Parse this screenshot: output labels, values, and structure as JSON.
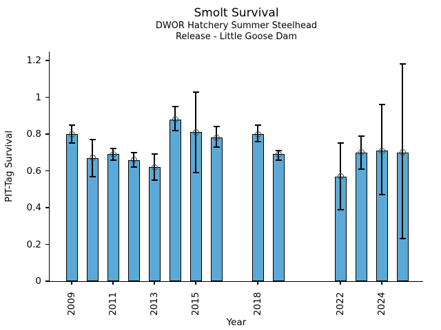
{
  "chart_data": {
    "type": "bar",
    "title": "Smolt Survival",
    "subtitle1": "DWOR Hatchery Summer Steelhead",
    "subtitle2": "Release - Little Goose Dam",
    "xlabel": "Year",
    "ylabel": "PIT-Tag Survival",
    "x": [
      2009,
      2010,
      2011,
      2012,
      2013,
      2014,
      2015,
      2016,
      2018,
      2019,
      2022,
      2023,
      2024,
      2025
    ],
    "values": [
      0.8,
      0.67,
      0.69,
      0.66,
      0.62,
      0.88,
      0.81,
      0.78,
      0.8,
      0.69,
      0.57,
      0.7,
      0.71,
      0.7
    ],
    "err_low": [
      0.75,
      0.57,
      0.66,
      0.62,
      0.55,
      0.82,
      0.59,
      0.73,
      0.76,
      0.66,
      0.39,
      0.61,
      0.47,
      0.23
    ],
    "err_high": [
      0.85,
      0.77,
      0.72,
      0.7,
      0.69,
      0.95,
      1.03,
      0.84,
      0.85,
      0.71,
      0.75,
      0.79,
      0.96,
      1.18
    ],
    "x_tick_years": [
      2009,
      2011,
      2013,
      2015,
      2018,
      2022,
      2024
    ],
    "y_ticks": [
      {
        "v": 0,
        "label": "0"
      },
      {
        "v": 0.2,
        "label": "0.2"
      },
      {
        "v": 0.4,
        "label": "0.4"
      },
      {
        "v": 0.6,
        "label": "0.6"
      },
      {
        "v": 0.8,
        "label": "0.8"
      },
      {
        "v": 1,
        "label": "1"
      },
      {
        "v": 1.2,
        "label": "1.2"
      }
    ],
    "xlim": [
      2007.93,
      2026.0
    ],
    "ylim": [
      0,
      1.249
    ],
    "grid": false,
    "legend": null,
    "marker_style": "open-circle",
    "bar_color": "#5BA9D6",
    "bar_edge_color": "#000000",
    "error_color": "#000000",
    "marker_edge_color": "#444444"
  }
}
